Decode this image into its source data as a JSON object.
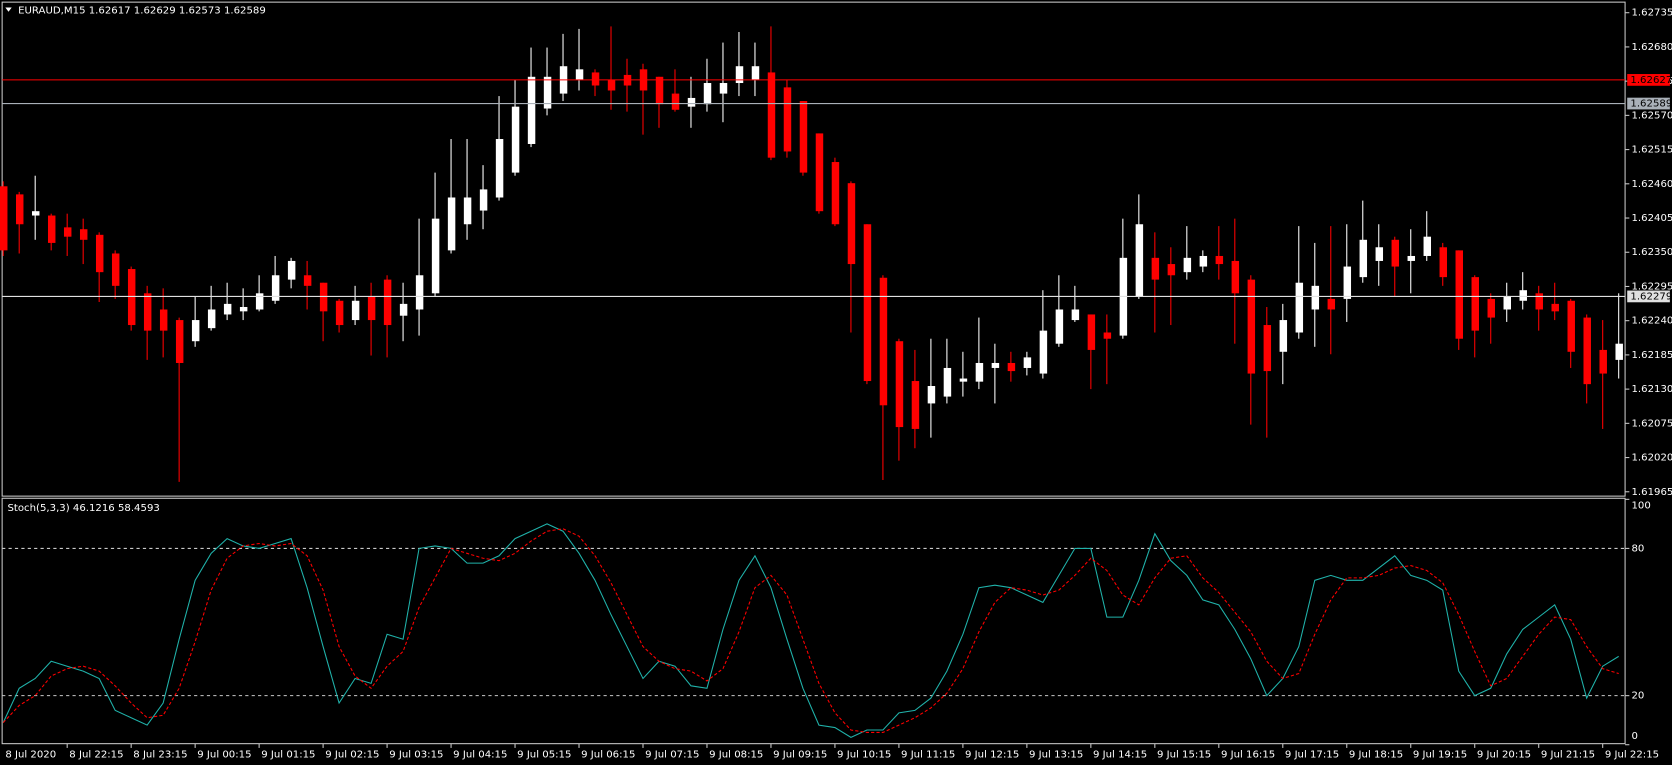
{
  "chart_data": [
    {
      "type": "candlestick",
      "title": "EURAUD,M15  1.62617 1.62629 1.62573 1.62589",
      "colors": {
        "up": "#ffffff",
        "down": "#ff0000"
      },
      "ylim": [
        1.61958,
        1.62752
      ],
      "yticks": [
        1.62735,
        {
          "value": 1.6268,
          "label": "1.62680"
        },
        1.62625,
        {
          "value": 1.6257,
          "label": "1.62570"
        },
        1.62515,
        {
          "value": 1.6246,
          "label": "1.62460"
        },
        1.62405,
        {
          "value": 1.6235,
          "label": "1.62350"
        },
        1.62295,
        {
          "value": 1.6224,
          "label": "1.62240"
        },
        1.62185,
        {
          "value": 1.6213,
          "label": "1.62130"
        },
        1.62075,
        {
          "value": 1.6202,
          "label": "1.62020"
        },
        1.61965
      ],
      "levels": [
        {
          "price": 1.62627,
          "color": "#ff0000"
        },
        {
          "price": 1.62589,
          "color": "#a9b0b8"
        },
        {
          "price": 1.62279,
          "color": "#e0e0e0"
        }
      ],
      "open": [
        1.62456,
        1.62443,
        1.62409,
        1.62409,
        1.6239,
        1.62387,
        1.62378,
        1.62348,
        1.62323,
        1.62284,
        1.62258,
        1.62241,
        1.62207,
        1.62228,
        1.6225,
        1.62255,
        1.62258,
        1.62272,
        1.62306,
        1.62313,
        1.62301,
        1.62272,
        1.62241,
        1.62279,
        1.62306,
        1.62248,
        1.62258,
        1.62284,
        1.62353,
        1.62395,
        1.62417,
        1.62438,
        1.62478,
        1.62524,
        1.62581,
        1.62605,
        1.62627,
        1.62639,
        1.62627,
        1.62635,
        1.62644,
        1.62632,
        1.62605,
        1.62584,
        1.62588,
        1.62605,
        1.62622,
        1.62627,
        1.62639,
        1.62615,
        1.62593,
        1.62541,
        1.62495,
        1.62461,
        1.62395,
        1.62309,
        1.62207,
        1.62143,
        1.62107,
        1.62118,
        1.62142,
        1.62142,
        1.62164,
        1.62172,
        1.62164,
        1.62155,
        1.62203,
        1.62241,
        1.6225,
        1.62221,
        1.62216,
        1.62279,
        1.62341,
        1.62331,
        1.62318,
        1.62327,
        1.62344,
        1.62336,
        1.62306,
        1.62233,
        1.6219,
        1.62221,
        1.62258,
        1.62275,
        1.62275,
        1.6231,
        1.62336,
        1.6237,
        1.62336,
        1.62344,
        1.62358,
        1.62353,
        1.6231,
        1.62275,
        1.62258,
        1.62272,
        1.62284,
        1.62267,
        1.62272,
        1.62245,
        1.62193,
        1.62177
      ],
      "high": [
        1.62464,
        1.62447,
        1.62473,
        1.62412,
        1.62412,
        1.62404,
        1.62382,
        1.62353,
        1.62327,
        1.62296,
        1.62292,
        1.62245,
        1.62279,
        1.62296,
        1.62301,
        1.62292,
        1.62313,
        1.62344,
        1.62341,
        1.62336,
        1.62301,
        1.62275,
        1.62296,
        1.62301,
        1.62313,
        1.62301,
        1.62404,
        1.62478,
        1.62532,
        1.62532,
        1.6249,
        1.62601,
        1.62627,
        1.62679,
        1.62679,
        1.62701,
        1.62709,
        1.62644,
        1.62713,
        1.62661,
        1.62653,
        1.62632,
        1.62644,
        1.62632,
        1.62661,
        1.62687,
        1.62704,
        1.62687,
        1.62713,
        1.62627,
        1.62593,
        1.62541,
        1.62502,
        1.62464,
        1.62395,
        1.62313,
        1.62211,
        1.62193,
        1.62211,
        1.62211,
        1.6219,
        1.62245,
        1.62203,
        1.6219,
        1.6219,
        1.62289,
        1.62313,
        1.62296,
        1.6225,
        1.6225,
        1.62404,
        1.62443,
        1.62382,
        1.62358,
        1.62392,
        1.62353,
        1.62392,
        1.62404,
        1.62313,
        1.62262,
        1.62267,
        1.62392,
        1.62365,
        1.62392,
        1.62395,
        1.62433,
        1.62395,
        1.62375,
        1.62387,
        1.62416,
        1.62365,
        1.62353,
        1.62313,
        1.62284,
        1.62301,
        1.62318,
        1.62296,
        1.62301,
        1.62275,
        1.6225,
        1.62241,
        1.62284
      ],
      "low": [
        1.62344,
        1.62348,
        1.6237,
        1.62353,
        1.62344,
        1.62331,
        1.6227,
        1.62275,
        1.62224,
        1.62177,
        1.62181,
        1.61981,
        1.62198,
        1.62224,
        1.62241,
        1.62241,
        1.62255,
        1.62267,
        1.62292,
        1.62258,
        1.62207,
        1.62221,
        1.62233,
        1.62184,
        1.62181,
        1.62207,
        1.62216,
        1.62279,
        1.62348,
        1.6237,
        1.62387,
        1.62433,
        1.62473,
        1.62519,
        1.6257,
        1.62593,
        1.6261,
        1.62601,
        1.62579,
        1.62576,
        1.62539,
        1.6255,
        1.62576,
        1.6255,
        1.62576,
        1.62559,
        1.62601,
        1.62601,
        1.62498,
        1.62502,
        1.62473,
        1.62412,
        1.62392,
        1.62221,
        1.62138,
        1.61984,
        1.62015,
        1.62035,
        1.62052,
        1.62107,
        1.62118,
        1.6213,
        1.62107,
        1.62142,
        1.62152,
        1.62147,
        1.62198,
        1.62238,
        1.6213,
        1.62138,
        1.62211,
        1.62275,
        1.62221,
        1.62233,
        1.62306,
        1.62318,
        1.62306,
        1.62203,
        1.62073,
        1.62052,
        1.62138,
        1.62211,
        1.62198,
        1.62186,
        1.62238,
        1.62301,
        1.62296,
        1.62279,
        1.62284,
        1.62336,
        1.62296,
        1.62193,
        1.62181,
        1.62203,
        1.62238,
        1.62258,
        1.62224,
        1.62241,
        1.62164,
        1.62107,
        1.62066,
        1.62147
      ],
      "close": [
        1.62353,
        1.62395,
        1.62416,
        1.62365,
        1.62375,
        1.6237,
        1.62318,
        1.62296,
        1.62233,
        1.62224,
        1.62224,
        1.62172,
        1.62241,
        1.62258,
        1.62267,
        1.62262,
        1.62284,
        1.62313,
        1.62336,
        1.62296,
        1.62255,
        1.62233,
        1.62272,
        1.62241,
        1.62233,
        1.62267,
        1.62313,
        1.62404,
        1.62438,
        1.62438,
        1.62451,
        1.62532,
        1.62584,
        1.62632,
        1.62632,
        1.62649,
        1.62644,
        1.62618,
        1.6261,
        1.62618,
        1.6261,
        1.62588,
        1.62579,
        1.62598,
        1.62622,
        1.62622,
        1.62649,
        1.62649,
        1.62502,
        1.62512,
        1.62478,
        1.62416,
        1.62395,
        1.62331,
        1.62143,
        1.62104,
        1.62069,
        1.62066,
        1.62135,
        1.62164,
        1.62147,
        1.62172,
        1.62172,
        1.62159,
        1.62181,
        1.62224,
        1.62258,
        1.62258,
        1.62193,
        1.62211,
        1.62341,
        1.62395,
        1.62306,
        1.62313,
        1.62341,
        1.62344,
        1.62331,
        1.62284,
        1.62155,
        1.62159,
        1.62241,
        1.62301,
        1.62296,
        1.62258,
        1.62327,
        1.6237,
        1.62358,
        1.62327,
        1.62344,
        1.62375,
        1.6231,
        1.62211,
        1.62224,
        1.62245,
        1.62279,
        1.62289,
        1.62258,
        1.62255,
        1.6219,
        1.62138,
        1.62155,
        1.62203
      ]
    },
    {
      "type": "line",
      "title": "Stoch(5,3,3) 46.1216 58.4593",
      "ylim": [
        0,
        100
      ],
      "yticks": [
        100,
        80,
        20,
        0
      ],
      "levels": [
        80,
        20
      ],
      "x_labels": [
        "8 Jul 2020",
        "8 Jul 22:15",
        "8 Jul 23:15",
        "9 Jul 00:15",
        "9 Jul 01:15",
        "9 Jul 02:15",
        "9 Jul 03:15",
        "9 Jul 04:15",
        "9 Jul 05:15",
        "9 Jul 06:15",
        "9 Jul 07:15",
        "9 Jul 08:15",
        "9 Jul 09:15",
        "9 Jul 10:15",
        "9 Jul 11:15",
        "9 Jul 12:15",
        "9 Jul 13:15",
        "9 Jul 14:15",
        "9 Jul 15:15",
        "9 Jul 16:15",
        "9 Jul 17:15",
        "9 Jul 18:15",
        "9 Jul 19:15",
        "9 Jul 20:15",
        "9 Jul 21:15",
        "9 Jul 22:15"
      ],
      "series": [
        {
          "color": "#20b2aa",
          "dashed": false,
          "values": [
            9,
            23,
            27,
            34,
            32,
            30,
            27,
            14,
            11,
            8,
            17,
            43,
            67,
            78,
            84,
            81,
            80,
            82,
            84,
            64,
            40,
            17,
            27,
            25,
            45,
            43,
            80,
            81,
            80,
            74,
            74,
            77,
            84,
            87,
            90,
            87,
            78,
            67,
            53,
            40,
            27,
            34,
            32,
            24,
            23,
            47,
            67,
            77,
            64,
            43,
            23,
            8,
            7,
            3,
            6,
            6,
            13,
            14,
            19,
            30,
            45,
            64,
            65,
            64,
            61,
            58,
            69,
            80,
            80,
            52,
            52,
            67,
            86,
            75,
            69,
            59,
            57,
            47,
            35,
            20,
            27,
            40,
            67,
            69,
            67,
            67,
            72,
            77,
            69,
            67,
            63,
            30,
            20,
            23,
            37,
            47,
            52,
            57,
            43,
            19,
            32,
            36
          ]
        },
        {
          "color": "#ff0000",
          "dashed": true,
          "values": [
            9,
            16,
            20,
            28,
            31,
            32,
            30,
            24,
            17,
            11,
            12,
            23,
            42,
            63,
            76,
            81,
            82,
            81,
            82,
            77,
            63,
            40,
            28,
            23,
            32,
            38,
            56,
            68,
            80,
            78,
            76,
            75,
            78,
            83,
            87,
            88,
            85,
            77,
            66,
            53,
            40,
            34,
            31,
            30,
            26,
            31,
            46,
            64,
            69,
            61,
            43,
            25,
            13,
            6,
            5,
            5,
            8,
            11,
            15,
            21,
            31,
            46,
            58,
            64,
            63,
            61,
            63,
            69,
            76,
            71,
            61,
            57,
            68,
            76,
            77,
            68,
            62,
            54,
            46,
            34,
            27,
            29,
            45,
            59,
            68,
            68,
            69,
            72,
            73,
            71,
            66,
            53,
            38,
            24,
            27,
            36,
            45,
            52,
            51,
            40,
            31,
            29
          ]
        }
      ]
    }
  ]
}
